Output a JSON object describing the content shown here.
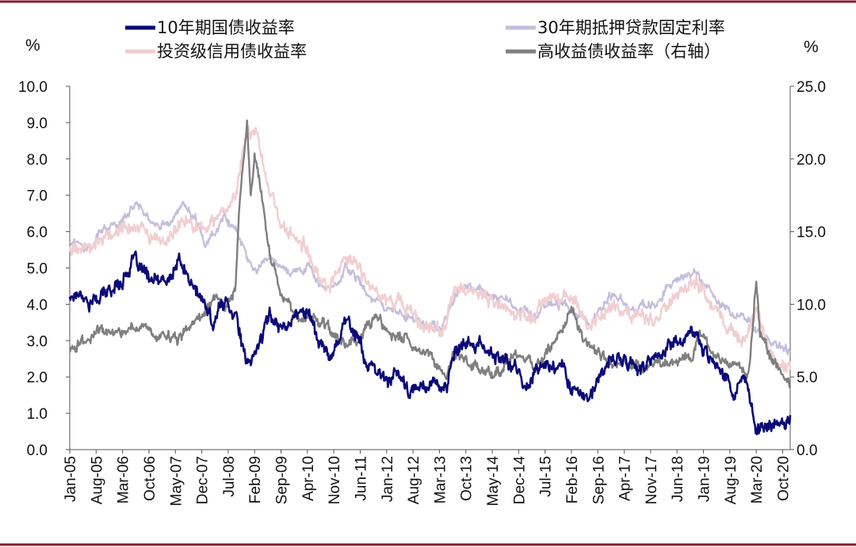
{
  "chart_data": {
    "type": "line",
    "title": "",
    "xlabel": "",
    "ylabel_left": "%",
    "ylabel_right": "%",
    "ylim_left": [
      0,
      10
    ],
    "ylim_right": [
      0,
      25
    ],
    "x_range": [
      "2005-01",
      "2020-12"
    ],
    "left_ticks": [
      "0.0",
      "1.0",
      "2.0",
      "3.0",
      "4.0",
      "5.0",
      "6.0",
      "7.0",
      "8.0",
      "9.0",
      "10.0"
    ],
    "right_ticks": [
      "0.0",
      "5.0",
      "10.0",
      "15.0",
      "20.0",
      "25.0"
    ],
    "x_ticks": [
      "Jan-05",
      "Aug-05",
      "Mar-06",
      "Oct-06",
      "May-07",
      "Dec-07",
      "Jul-08",
      "Feb-09",
      "Sep-09",
      "Apr-10",
      "Nov-10",
      "Jun-11",
      "Jan-12",
      "Aug-12",
      "Mar-13",
      "Oct-13",
      "May-14",
      "Dec-14",
      "Jul-15",
      "Feb-16",
      "Sep-16",
      "Apr-17",
      "Nov-17",
      "Jun-18",
      "Jan-19",
      "Aug-19",
      "Mar-20",
      "Oct-20"
    ],
    "grid": false,
    "legend_position": "top",
    "series": [
      {
        "name": "10年期国债收益率",
        "axis": "left",
        "color": "#0a0a78",
        "points": [
          [
            "2005-01",
            4.2
          ],
          [
            "2005-04",
            4.4
          ],
          [
            "2005-06",
            4.0
          ],
          [
            "2005-09",
            4.2
          ],
          [
            "2005-12",
            4.4
          ],
          [
            "2006-03",
            4.7
          ],
          [
            "2006-06",
            5.2
          ],
          [
            "2006-09",
            4.8
          ],
          [
            "2006-12",
            4.6
          ],
          [
            "2007-03",
            4.6
          ],
          [
            "2007-06",
            5.2
          ],
          [
            "2007-09",
            4.6
          ],
          [
            "2007-12",
            4.1
          ],
          [
            "2008-03",
            3.5
          ],
          [
            "2008-06",
            4.1
          ],
          [
            "2008-09",
            3.8
          ],
          [
            "2008-12",
            2.2
          ],
          [
            "2009-03",
            2.9
          ],
          [
            "2009-06",
            3.7
          ],
          [
            "2009-09",
            3.4
          ],
          [
            "2009-12",
            3.6
          ],
          [
            "2010-04",
            3.9
          ],
          [
            "2010-07",
            3.0
          ],
          [
            "2010-10",
            2.5
          ],
          [
            "2011-02",
            3.6
          ],
          [
            "2011-05",
            3.2
          ],
          [
            "2011-08",
            2.3
          ],
          [
            "2011-10",
            2.1
          ],
          [
            "2012-01",
            1.95
          ],
          [
            "2012-04",
            2.1
          ],
          [
            "2012-07",
            1.5
          ],
          [
            "2012-10",
            1.75
          ],
          [
            "2013-01",
            1.9
          ],
          [
            "2013-05",
            1.7
          ],
          [
            "2013-07",
            2.6
          ],
          [
            "2013-09",
            2.8
          ],
          [
            "2013-12",
            2.95
          ],
          [
            "2014-04",
            2.7
          ],
          [
            "2014-08",
            2.45
          ],
          [
            "2014-12",
            2.2
          ],
          [
            "2015-01",
            1.7
          ],
          [
            "2015-06",
            2.35
          ],
          [
            "2015-12",
            2.25
          ],
          [
            "2016-02",
            1.75
          ],
          [
            "2016-07",
            1.4
          ],
          [
            "2016-12",
            2.45
          ],
          [
            "2017-03",
            2.5
          ],
          [
            "2017-09",
            2.2
          ],
          [
            "2018-01",
            2.6
          ],
          [
            "2018-05",
            2.95
          ],
          [
            "2018-11",
            3.2
          ],
          [
            "2019-01",
            2.75
          ],
          [
            "2019-05",
            2.4
          ],
          [
            "2019-09",
            1.55
          ],
          [
            "2019-12",
            1.9
          ],
          [
            "2020-03",
            0.6
          ],
          [
            "2020-06",
            0.7
          ],
          [
            "2020-09",
            0.65
          ],
          [
            "2020-12",
            0.95
          ]
        ]
      },
      {
        "name": "30年期抵押贷款固定利率",
        "axis": "left",
        "color": "#c4bedd",
        "points": [
          [
            "2005-01",
            5.7
          ],
          [
            "2005-06",
            5.6
          ],
          [
            "2005-10",
            6.1
          ],
          [
            "2006-03",
            6.3
          ],
          [
            "2006-07",
            6.8
          ],
          [
            "2006-11",
            6.2
          ],
          [
            "2007-03",
            6.2
          ],
          [
            "2007-07",
            6.7
          ],
          [
            "2007-11",
            6.2
          ],
          [
            "2008-01",
            5.6
          ],
          [
            "2008-06",
            6.4
          ],
          [
            "2008-09",
            6.1
          ],
          [
            "2008-12",
            5.2
          ],
          [
            "2009-03",
            5.0
          ],
          [
            "2009-06",
            5.4
          ],
          [
            "2009-09",
            5.1
          ],
          [
            "2009-12",
            4.9
          ],
          [
            "2010-04",
            5.1
          ],
          [
            "2010-07",
            4.6
          ],
          [
            "2010-10",
            4.3
          ],
          [
            "2011-02",
            5.0
          ],
          [
            "2011-06",
            4.6
          ],
          [
            "2011-09",
            4.1
          ],
          [
            "2011-12",
            4.0
          ],
          [
            "2012-06",
            3.7
          ],
          [
            "2012-11",
            3.4
          ],
          [
            "2013-04",
            3.4
          ],
          [
            "2013-08",
            4.4
          ],
          [
            "2013-12",
            4.5
          ],
          [
            "2014-06",
            4.2
          ],
          [
            "2014-12",
            3.9
          ],
          [
            "2015-04",
            3.7
          ],
          [
            "2015-07",
            4.0
          ],
          [
            "2015-12",
            4.0
          ],
          [
            "2016-07",
            3.45
          ],
          [
            "2016-12",
            4.3
          ],
          [
            "2017-06",
            3.9
          ],
          [
            "2017-12",
            3.95
          ],
          [
            "2018-05",
            4.6
          ],
          [
            "2018-11",
            4.9
          ],
          [
            "2019-03",
            4.3
          ],
          [
            "2019-09",
            3.6
          ],
          [
            "2019-12",
            3.7
          ],
          [
            "2020-03",
            3.3
          ],
          [
            "2020-08",
            2.95
          ],
          [
            "2020-12",
            2.7
          ]
        ]
      },
      {
        "name": "投资级信用债收益率",
        "axis": "left",
        "color": "#f1cfd0",
        "points": [
          [
            "2005-01",
            5.5
          ],
          [
            "2005-06",
            5.6
          ],
          [
            "2005-10",
            5.9
          ],
          [
            "2006-03",
            6.1
          ],
          [
            "2006-07",
            6.2
          ],
          [
            "2006-11",
            5.7
          ],
          [
            "2007-03",
            5.8
          ],
          [
            "2007-07",
            6.3
          ],
          [
            "2007-11",
            6.2
          ],
          [
            "2008-01",
            6.0
          ],
          [
            "2008-05",
            6.5
          ],
          [
            "2008-09",
            7.0
          ],
          [
            "2008-12",
            8.8
          ],
          [
            "2009-03",
            8.6
          ],
          [
            "2009-06",
            7.0
          ],
          [
            "2009-09",
            6.2
          ],
          [
            "2009-12",
            5.8
          ],
          [
            "2010-03",
            5.6
          ],
          [
            "2010-07",
            4.8
          ],
          [
            "2010-10",
            4.5
          ],
          [
            "2011-02",
            5.3
          ],
          [
            "2011-06",
            5.0
          ],
          [
            "2011-09",
            4.4
          ],
          [
            "2011-12",
            4.2
          ],
          [
            "2012-06",
            3.9
          ],
          [
            "2012-12",
            3.3
          ],
          [
            "2013-04",
            3.2
          ],
          [
            "2013-07",
            4.4
          ],
          [
            "2013-12",
            4.3
          ],
          [
            "2014-06",
            4.0
          ],
          [
            "2014-12",
            3.7
          ],
          [
            "2015-04",
            3.6
          ],
          [
            "2015-07",
            4.1
          ],
          [
            "2015-12",
            4.2
          ],
          [
            "2016-02",
            4.2
          ],
          [
            "2016-07",
            3.4
          ],
          [
            "2016-12",
            3.9
          ],
          [
            "2017-06",
            3.7
          ],
          [
            "2017-12",
            3.6
          ],
          [
            "2018-05",
            4.2
          ],
          [
            "2018-11",
            4.7
          ],
          [
            "2019-03",
            4.1
          ],
          [
            "2019-09",
            3.1
          ],
          [
            "2019-12",
            3.0
          ],
          [
            "2020-03",
            4.0
          ],
          [
            "2020-06",
            2.8
          ],
          [
            "2020-09",
            2.3
          ],
          [
            "2020-12",
            2.2
          ]
        ]
      },
      {
        "name": "高收益债收益率（右轴）",
        "axis": "right",
        "color": "#7f7f7f",
        "points": [
          [
            "2005-01",
            6.9
          ],
          [
            "2005-05",
            7.4
          ],
          [
            "2005-07",
            8.0
          ],
          [
            "2005-12",
            8.1
          ],
          [
            "2006-03",
            8.2
          ],
          [
            "2006-06",
            8.6
          ],
          [
            "2006-09",
            8.3
          ],
          [
            "2006-12",
            7.9
          ],
          [
            "2007-03",
            7.6
          ],
          [
            "2007-06",
            7.6
          ],
          [
            "2007-09",
            8.7
          ],
          [
            "2007-12",
            9.2
          ],
          [
            "2008-03",
            10.4
          ],
          [
            "2008-06",
            9.6
          ],
          [
            "2008-09",
            11.2
          ],
          [
            "2008-10",
            17.0
          ],
          [
            "2008-12",
            22.8
          ],
          [
            "2009-01",
            17.5
          ],
          [
            "2009-02",
            20.3
          ],
          [
            "2009-03",
            19.0
          ],
          [
            "2009-06",
            13.5
          ],
          [
            "2009-09",
            11.0
          ],
          [
            "2009-12",
            9.3
          ],
          [
            "2010-03",
            8.6
          ],
          [
            "2010-06",
            9.3
          ],
          [
            "2010-09",
            8.5
          ],
          [
            "2010-12",
            7.8
          ],
          [
            "2011-03",
            7.2
          ],
          [
            "2011-06",
            7.3
          ],
          [
            "2011-08",
            8.2
          ],
          [
            "2011-10",
            9.2
          ],
          [
            "2011-12",
            8.6
          ],
          [
            "2012-03",
            7.6
          ],
          [
            "2012-06",
            7.8
          ],
          [
            "2012-09",
            6.7
          ],
          [
            "2012-12",
            6.3
          ],
          [
            "2013-03",
            5.7
          ],
          [
            "2013-05",
            5.3
          ],
          [
            "2013-07",
            6.5
          ],
          [
            "2013-12",
            5.7
          ],
          [
            "2014-06",
            5.0
          ],
          [
            "2014-10",
            6.3
          ],
          [
            "2014-12",
            6.5
          ],
          [
            "2015-04",
            5.8
          ],
          [
            "2015-07",
            6.6
          ],
          [
            "2015-12",
            8.5
          ],
          [
            "2016-02",
            10.0
          ],
          [
            "2016-05",
            7.5
          ],
          [
            "2016-09",
            6.7
          ],
          [
            "2016-12",
            6.1
          ],
          [
            "2017-06",
            5.8
          ],
          [
            "2017-12",
            5.7
          ],
          [
            "2018-06",
            6.3
          ],
          [
            "2018-10",
            6.4
          ],
          [
            "2018-12",
            8.0
          ],
          [
            "2019-03",
            6.6
          ],
          [
            "2019-06",
            6.1
          ],
          [
            "2019-09",
            6.0
          ],
          [
            "2019-12",
            5.3
          ],
          [
            "2020-01",
            5.4
          ],
          [
            "2020-03",
            11.7
          ],
          [
            "2020-04",
            8.3
          ],
          [
            "2020-06",
            6.5
          ],
          [
            "2020-09",
            5.6
          ],
          [
            "2020-12",
            4.4
          ]
        ]
      }
    ]
  }
}
